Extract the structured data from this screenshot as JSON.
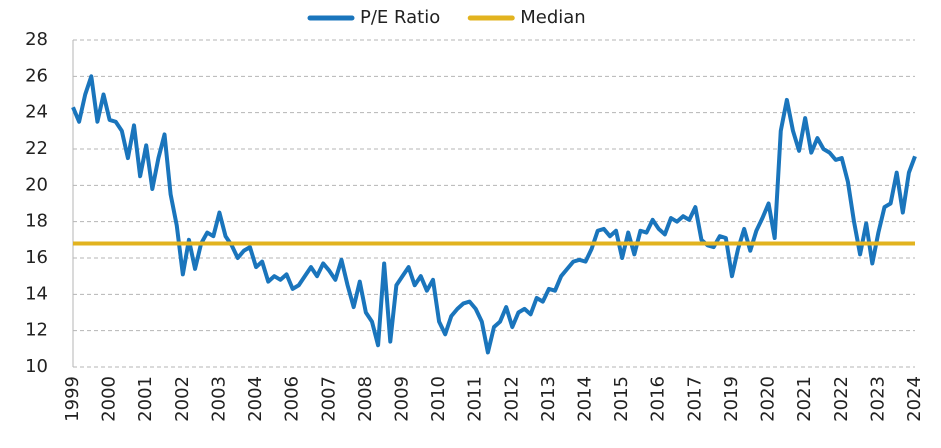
{
  "chart_data": {
    "type": "line",
    "categories": [
      "1999",
      null,
      null,
      null,
      null,
      null,
      "2000",
      null,
      null,
      null,
      null,
      null,
      "2001",
      null,
      null,
      null,
      null,
      null,
      "2002",
      null,
      null,
      null,
      null,
      null,
      "2003",
      null,
      null,
      null,
      null,
      null,
      "2004",
      null,
      null,
      null,
      null,
      null,
      "2006",
      null,
      null,
      null,
      null,
      null,
      "2007",
      null,
      null,
      null,
      null,
      null,
      "2008",
      null,
      null,
      null,
      null,
      null,
      "2009",
      null,
      null,
      null,
      null,
      null,
      "2010",
      null,
      null,
      null,
      null,
      null,
      "2011",
      null,
      null,
      null,
      null,
      null,
      "2012",
      null,
      null,
      null,
      null,
      null,
      "2013",
      null,
      null,
      null,
      null,
      null,
      "2014",
      null,
      null,
      null,
      null,
      null,
      "2015",
      null,
      null,
      null,
      null,
      null,
      "2016",
      null,
      null,
      null,
      null,
      null,
      "2017",
      null,
      null,
      null,
      null,
      null,
      "2019",
      null,
      null,
      null,
      null,
      null,
      "2020",
      null,
      null,
      null,
      null,
      null,
      "2021",
      null,
      null,
      null,
      null,
      null,
      "2022",
      null,
      null,
      null,
      null,
      null,
      "2023",
      null,
      null,
      null,
      null,
      null,
      "2024"
    ],
    "series": [
      {
        "name": "P/E Ratio",
        "color": "#1a75bc",
        "values": [
          24.3,
          23.5,
          25,
          26,
          23.5,
          25,
          23.6,
          23.5,
          23,
          21.5,
          23.3,
          20.5,
          22.2,
          19.8,
          21.5,
          22.8,
          19.5,
          17.8,
          15.1,
          17,
          15.4,
          16.8,
          17.4,
          17.2,
          18.5,
          17.2,
          16.7,
          16,
          16.4,
          16.6,
          15.5,
          15.8,
          14.7,
          15,
          14.8,
          15.1,
          14.3,
          14.5,
          15,
          15.5,
          15,
          15.7,
          15.3,
          14.8,
          15.9,
          14.5,
          13.3,
          14.7,
          13,
          12.5,
          11.2,
          15.7,
          11.4,
          14.5,
          15,
          15.5,
          14.5,
          15,
          14.2,
          14.8,
          12.5,
          11.8,
          12.8,
          13.2,
          13.5,
          13.6,
          13.2,
          12.5,
          10.8,
          12.2,
          12.5,
          13.3,
          12.2,
          13,
          13.2,
          12.9,
          13.8,
          13.6,
          14.3,
          14.2,
          15,
          15.4,
          15.8,
          15.9,
          15.8,
          16.5,
          17.5,
          17.6,
          17.2,
          17.5,
          16,
          17.4,
          16.2,
          17.5,
          17.4,
          18.1,
          17.6,
          17.3,
          18.2,
          18,
          18.3,
          18.1,
          18.8,
          17,
          16.7,
          16.6,
          17.2,
          17.1,
          15,
          16.5,
          17.6,
          16.4,
          17.5,
          18.2,
          19,
          17.1,
          23,
          24.7,
          23,
          21.9,
          23.7,
          21.8,
          22.6,
          22,
          21.8,
          21.4,
          21.5,
          20.2,
          18,
          16.2,
          17.9,
          15.7,
          17.4,
          18.8,
          19,
          20.7,
          18.5,
          20.7,
          21.6
        ]
      },
      {
        "name": "Median",
        "color": "#e2b31f",
        "value": 16.8
      }
    ],
    "ylim": [
      10,
      28
    ],
    "yticks": [
      10,
      12,
      14,
      16,
      18,
      20,
      22,
      24,
      26,
      28
    ],
    "grid": true,
    "legend": "top"
  }
}
